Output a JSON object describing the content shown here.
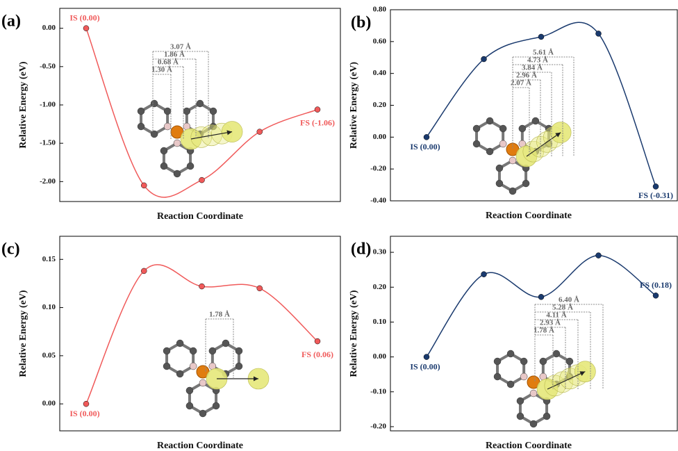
{
  "chart_data": [
    {
      "type": "line",
      "label": "(a)",
      "xlabel": "Reaction Coordinate",
      "ylabel": "Relative Energy (eV)",
      "color": "#f05a5a",
      "categories": [
        null,
        null,
        null,
        null,
        null
      ],
      "values": [
        0.0,
        -2.05,
        -1.98,
        -1.35,
        -1.06
      ],
      "value_labels": [
        "IS (0.00)",
        null,
        null,
        null,
        "FS (-1.06)"
      ],
      "ylim": [
        -2.26,
        0.26
      ],
      "yticks": [
        {
          "value": 0,
          "label": "0.00"
        },
        {
          "value": -0.5,
          "label": "-0.50"
        },
        {
          "value": -1,
          "label": "-1.00"
        },
        {
          "value": -1.5,
          "label": "-1.50"
        },
        {
          "value": -2,
          "label": "-2.00"
        }
      ],
      "inset_labels": [
        "3.07 Å",
        "1.86 Å",
        "0.68 Å",
        "1.30 Å"
      ]
    },
    {
      "type": "line",
      "label": "(b)",
      "xlabel": "Reaction Coordinate",
      "ylabel": "Relative Energy (eV)",
      "color": "#1a3a6e",
      "categories": [
        null,
        null,
        null,
        null,
        null
      ],
      "values": [
        0.0,
        0.49,
        0.63,
        0.65,
        -0.31
      ],
      "value_labels": [
        "IS (0.00)",
        null,
        null,
        null,
        "FS (-0.31)"
      ],
      "ylim": [
        -0.4,
        0.8
      ],
      "yticks": [
        {
          "value": 0.8,
          "label": "0.80"
        },
        {
          "value": 0.6,
          "label": "0.60"
        },
        {
          "value": 0.4,
          "label": "0.40"
        },
        {
          "value": 0.2,
          "label": "0.20"
        },
        {
          "value": 0,
          "label": "0.00"
        },
        {
          "value": -0.2,
          "label": "-0.20"
        },
        {
          "value": -0.4,
          "label": "-0.40"
        }
      ],
      "inset_labels": [
        "5.61 Å",
        "4.73 Å",
        "3.84 Å",
        "2.96 Å",
        "2.07 Å"
      ]
    },
    {
      "type": "line",
      "label": "(c)",
      "xlabel": "Reaction Coordinate",
      "ylabel": "Relative Energy (eV)",
      "color": "#f05a5a",
      "categories": [
        null,
        null,
        null,
        null,
        null
      ],
      "values": [
        0.0,
        0.138,
        0.122,
        0.12,
        0.065
      ],
      "value_labels": [
        "IS (0.00)",
        null,
        null,
        null,
        "FS (0.06)"
      ],
      "ylim": [
        -0.028,
        0.174
      ],
      "yticks": [
        {
          "value": 0.15,
          "label": "0.15"
        },
        {
          "value": 0.1,
          "label": "0.10"
        },
        {
          "value": 0.05,
          "label": "0.05"
        },
        {
          "value": 0,
          "label": "0.00"
        }
      ],
      "inset_labels": [
        "1.78 Å"
      ]
    },
    {
      "type": "line",
      "label": "(d)",
      "xlabel": "Reaction Coordinate",
      "ylabel": "Relative Energy (eV)",
      "color": "#1a3a6e",
      "categories": [
        null,
        null,
        null,
        null,
        null
      ],
      "values": [
        0.0,
        0.237,
        0.172,
        0.291,
        0.176
      ],
      "value_labels": [
        "IS (0.00)",
        null,
        null,
        null,
        "FS (0.18)"
      ],
      "ylim": [
        -0.212,
        0.346
      ],
      "yticks": [
        {
          "value": 0.3,
          "label": "0.30"
        },
        {
          "value": 0.2,
          "label": "0.20"
        },
        {
          "value": 0.1,
          "label": "0.10"
        },
        {
          "value": 0,
          "label": "0.00"
        },
        {
          "value": -0.1,
          "label": "-0.10"
        },
        {
          "value": -0.2,
          "label": "-0.20"
        }
      ],
      "inset_labels": [
        "6.40 Å",
        "5.28 Å",
        "4.11 Å",
        "2.93 Å",
        "1.78 Å"
      ]
    }
  ]
}
